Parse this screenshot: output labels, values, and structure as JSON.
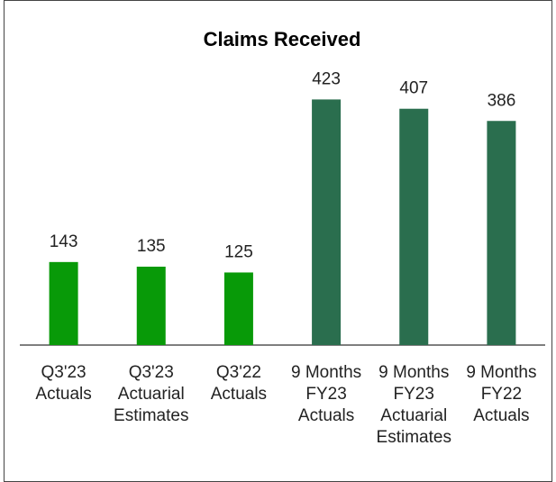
{
  "chart_data": {
    "type": "bar",
    "title": "Claims Received",
    "categories": [
      [
        "Q3'23",
        "Actuals"
      ],
      [
        "Q3'23",
        "Actuarial",
        "Estimates"
      ],
      [
        "Q3'22",
        "Actuals"
      ],
      [
        "9 Months",
        "FY23",
        "Actuals"
      ],
      [
        "9 Months",
        "FY23",
        "Actuarial",
        "Estimates"
      ],
      [
        "9 Months",
        "FY22",
        "Actuals"
      ]
    ],
    "values": [
      143,
      135,
      125,
      423,
      407,
      386
    ],
    "colors": [
      "#089a08",
      "#089a08",
      "#089a08",
      "#2a6e4e",
      "#2a6e4e",
      "#2a6e4e"
    ],
    "ylim": [
      0,
      450
    ]
  }
}
